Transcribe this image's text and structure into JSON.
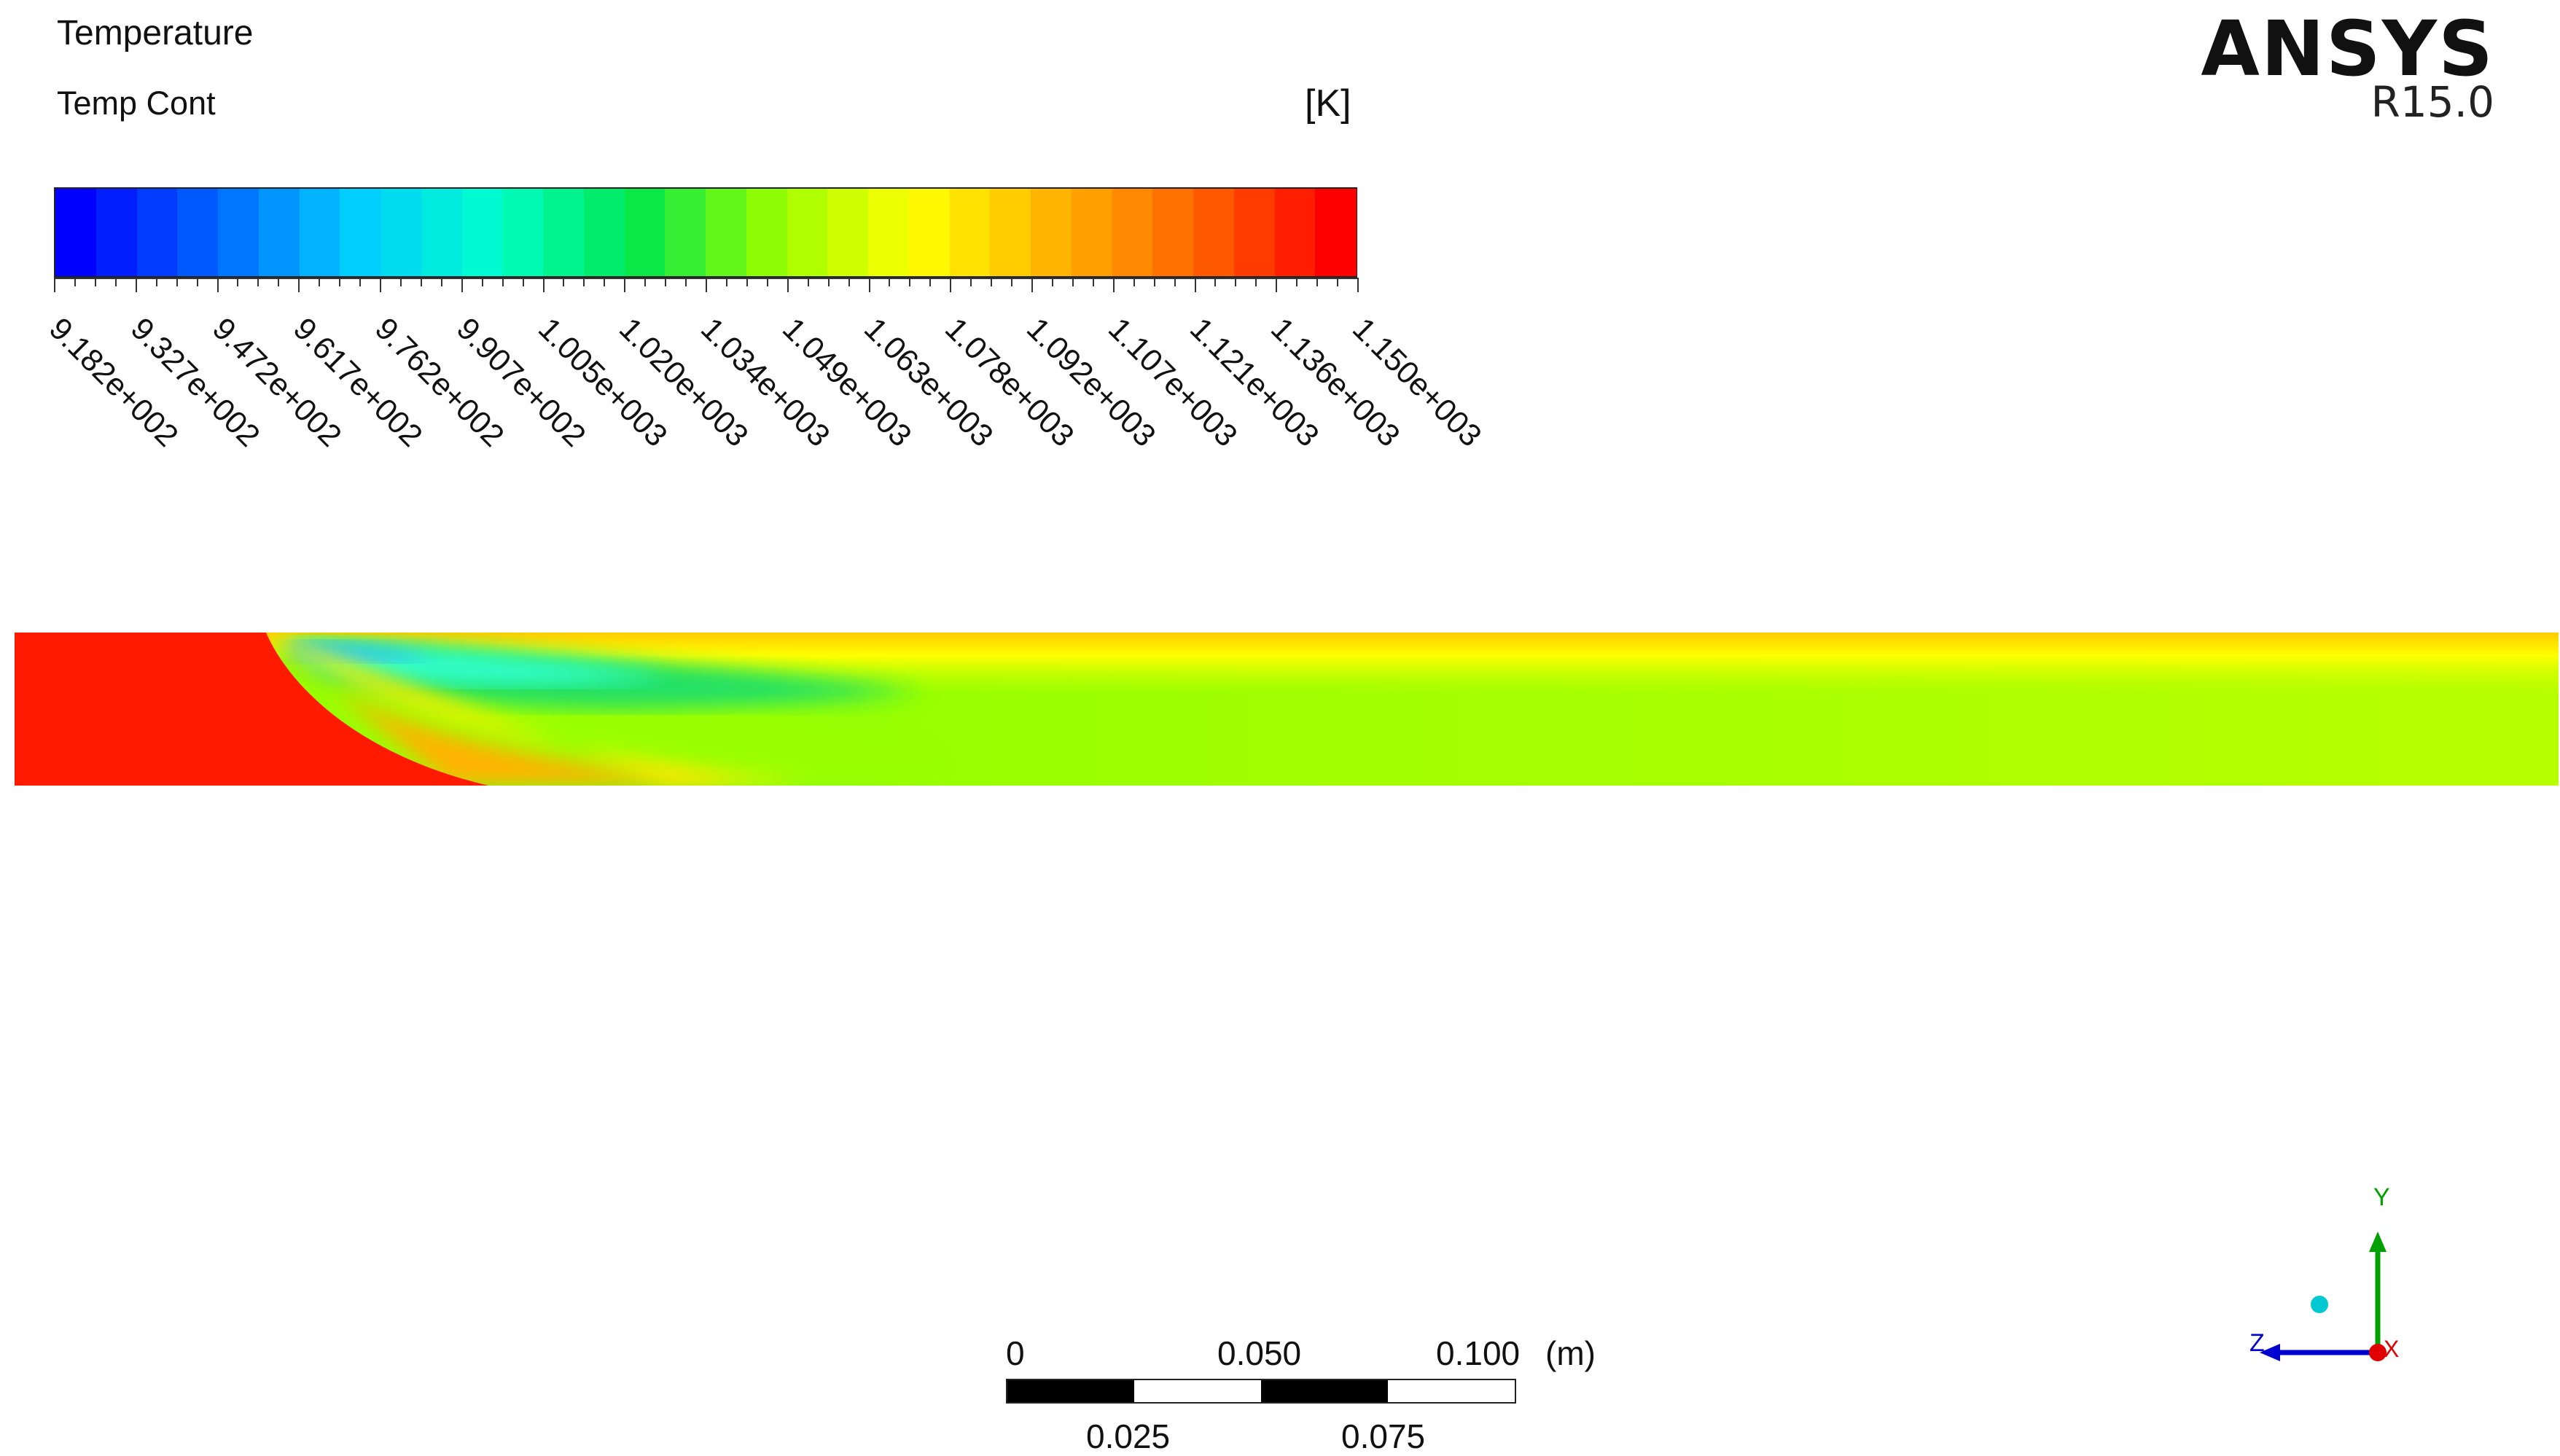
{
  "legend": {
    "title": "Temperature",
    "subtitle": "Temp Cont",
    "unit": "[K]",
    "colormap": [
      "#0000ff",
      "#0066ff",
      "#00ccff",
      "#00ffcc",
      "#00e64d",
      "#99ff00",
      "#ffff00",
      "#ffb300",
      "#ff6600",
      "#ff0000"
    ],
    "tick_labels": [
      "9.182e+002",
      "9.327e+002",
      "9.472e+002",
      "9.617e+002",
      "9.762e+002",
      "9.907e+002",
      "1.005e+003",
      "1.020e+003",
      "1.034e+003",
      "1.049e+003",
      "1.063e+003",
      "1.078e+003",
      "1.092e+003",
      "1.107e+003",
      "1.121e+003",
      "1.136e+003",
      "1.150e+003"
    ]
  },
  "brand": {
    "name": "ANSYS",
    "version": "R15.0"
  },
  "scale_bar": {
    "top_labels": [
      "0",
      "0.050",
      "0.100"
    ],
    "bottom_labels": [
      "0.025",
      "0.075"
    ],
    "unit": "(m)"
  },
  "axes_triad": {
    "x_label": "X",
    "y_label": "Y",
    "z_label": "Z",
    "colors": {
      "x": "#e00000",
      "y": "#00a000",
      "z": "#0000d0",
      "marker": "#00c8d0"
    }
  },
  "contour_colors": {
    "hot": "#ff1a00",
    "orange": "#ff8c00",
    "yellow": "#ffee00",
    "yellow_green": "#ccff00",
    "green": "#99ff00",
    "cyan_green": "#00ff99",
    "cyan": "#00ffff",
    "blue": "#0066ff"
  }
}
